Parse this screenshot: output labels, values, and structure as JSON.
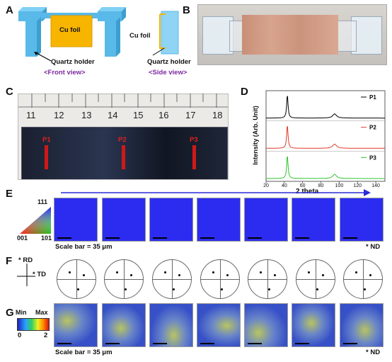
{
  "panels": {
    "A": {
      "letter": "A",
      "cu_foil": "Cu foil",
      "quartz_holder": "Quartz holder",
      "front_view": "<Front view>",
      "side_view": "<Side view>"
    },
    "B": {
      "letter": "B"
    },
    "C": {
      "letter": "C",
      "ruler_numbers": [
        "11",
        "12",
        "13",
        "14",
        "15",
        "16",
        "17",
        "18"
      ],
      "points": [
        "P1",
        "P2",
        "P3"
      ]
    },
    "D": {
      "letter": "D"
    },
    "E": {
      "letter": "E",
      "triangle_labels": {
        "top": "111",
        "left": "001",
        "right": "101"
      },
      "scale_bar": "Scale bar = 35 μm",
      "direction": "* ND",
      "tile_color": "#2c2cf0"
    },
    "F": {
      "letter": "F",
      "rd": "* RD",
      "td": "* TD"
    },
    "G": {
      "letter": "G",
      "legend_min": "Min",
      "legend_max": "Max",
      "legend_low": "0",
      "legend_high": "2",
      "scale_bar": "Scale bar = 35 μm",
      "direction": "* ND"
    }
  },
  "chart_data": {
    "type": "line",
    "xlabel": "2 theta",
    "ylabel": "Intensity (Arb. Unit)",
    "xlim": [
      20,
      150
    ],
    "xticks": [
      "20",
      "40",
      "60",
      "80",
      "100",
      "120",
      "140"
    ],
    "peaks_x": [
      43.3,
      95
    ],
    "series": [
      {
        "name": "P1",
        "color": "#000000"
      },
      {
        "name": "P2",
        "color": "#e03a2a"
      },
      {
        "name": "P3",
        "color": "#2ec42e"
      }
    ]
  }
}
